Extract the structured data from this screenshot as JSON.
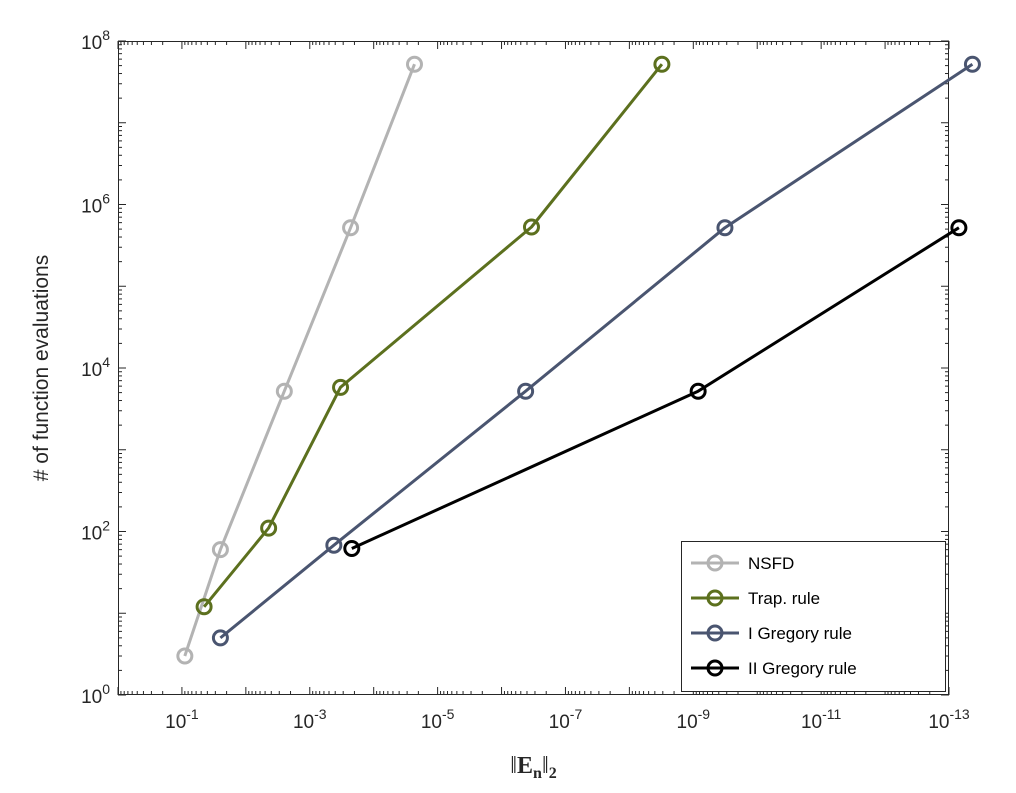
{
  "chart_data": {
    "type": "line",
    "xscale": "log",
    "yscale": "log",
    "x_reversed": true,
    "xlim": [
      1,
      1e-13
    ],
    "ylim": [
      1,
      100000000
    ],
    "xticks": [
      {
        "value": 0.1,
        "base": "10",
        "exp": "-1"
      },
      {
        "value": 0.001,
        "base": "10",
        "exp": "-3"
      },
      {
        "value": 1e-05,
        "base": "10",
        "exp": "-5"
      },
      {
        "value": 1e-07,
        "base": "10",
        "exp": "-7"
      },
      {
        "value": 1e-09,
        "base": "10",
        "exp": "-9"
      },
      {
        "value": 1e-11,
        "base": "10",
        "exp": "-11"
      },
      {
        "value": 1e-13,
        "base": "10",
        "exp": "-13"
      }
    ],
    "yticks": [
      {
        "value": 1,
        "base": "10",
        "exp": "0"
      },
      {
        "value": 100,
        "base": "10",
        "exp": "2"
      },
      {
        "value": 10000,
        "base": "10",
        "exp": "4"
      },
      {
        "value": 1000000,
        "base": "10",
        "exp": "6"
      },
      {
        "value": 100000000,
        "base": "10",
        "exp": "8"
      }
    ],
    "ylabel": "# of function evaluations",
    "xlabel": {
      "left": "‖",
      "main": "E",
      "sub": "n",
      "right": "‖",
      "sub2": "2"
    },
    "grid": false,
    "legend_position": "bottom-right",
    "series": [
      {
        "name": "NSFD",
        "color": "#b3b3b3",
        "x": [
          0.09,
          0.025,
          0.0025,
          0.00023,
          2.3e-05
        ],
        "y": [
          3,
          60,
          5200,
          520000,
          52000000
        ]
      },
      {
        "name": "Trap. rule",
        "color": "#5c701e",
        "x": [
          0.045,
          0.0044,
          0.00033,
          3.4e-07,
          3.1e-09
        ],
        "y": [
          12,
          110,
          5800,
          530000,
          52000000
        ]
      },
      {
        "name": "I Gregory rule",
        "color": "#4a5570",
        "x": [
          0.025,
          0.00042,
          4.2e-07,
          3.2e-10,
          4.3e-14
        ],
        "y": [
          5,
          68,
          5200,
          520000,
          52000000
        ]
      },
      {
        "name": "II Gregory rule",
        "color": "#000000",
        "x": [
          0.00022,
          8.4e-10,
          7e-14
        ],
        "y": [
          62,
          5200,
          520000
        ]
      }
    ]
  }
}
